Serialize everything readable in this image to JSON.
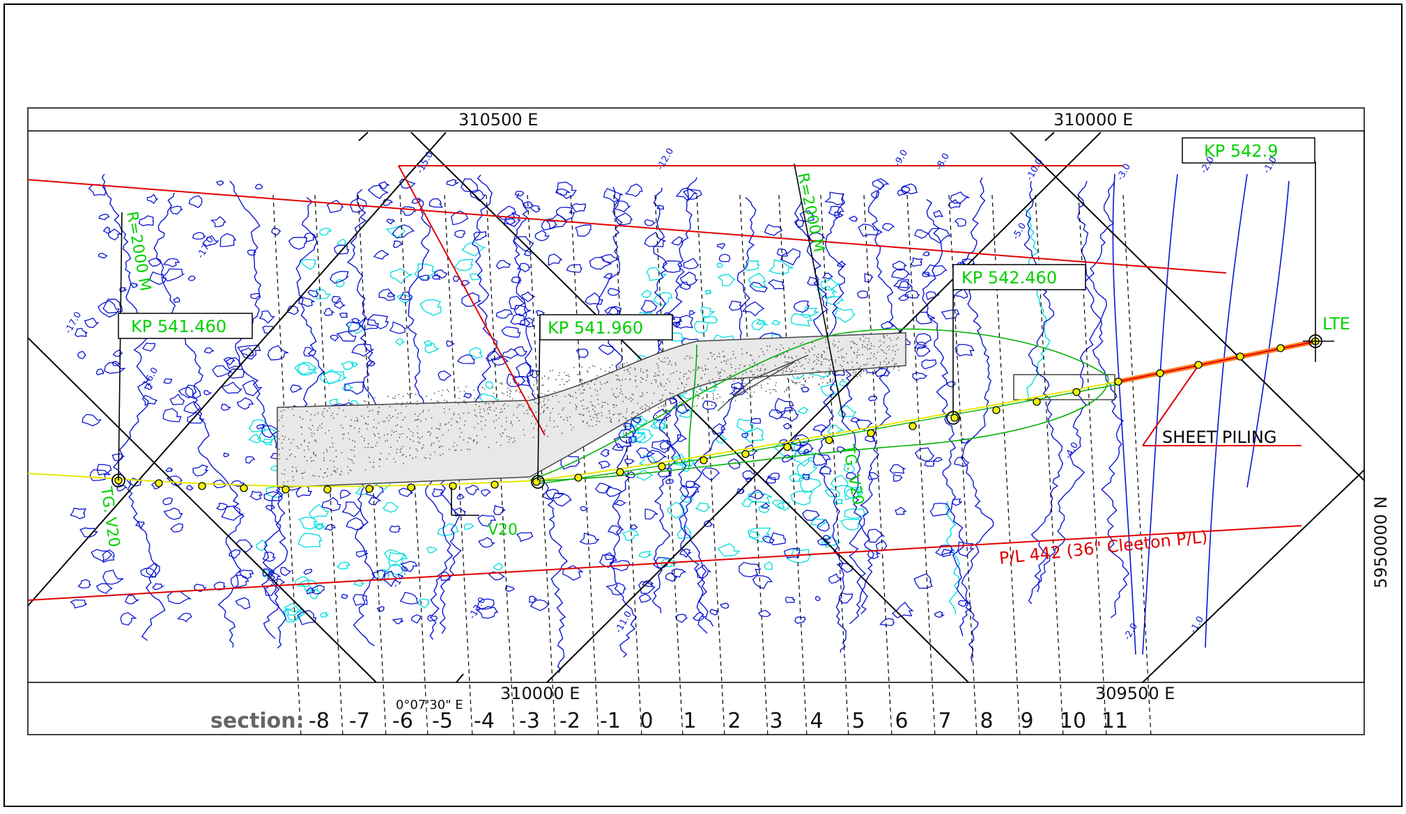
{
  "grid_labels": {
    "e_310500": "310500 E",
    "e_310000_top": "310000 E",
    "e_310000_bottom": "310000  E",
    "e_309500": "309500  E",
    "n_5950000": "5950000 N",
    "lon_label": "0°07'30\" E"
  },
  "kp_labels": [
    "KP 541.460",
    "KP 541.960",
    "KP 542.460",
    "KP 542.9"
  ],
  "annotations": {
    "lte": "LTE",
    "sheet_piling": "SHEET PILING",
    "pipeline": "P/L 442 (36\" Cleeton P/L)",
    "radius_left": "R=2000 M",
    "radius_right": "R=2000 M",
    "tg_v20": "TG. V20",
    "v20_mid": "V20",
    "tg_v20_right": "TG. V20"
  },
  "depth_labels": [
    "-17.0",
    "-17.0",
    "-16.0",
    "-15.0",
    "-14.0",
    "-13.0",
    "-12.0",
    "-11.0",
    "-10.0",
    "-9.0",
    "-8.0",
    "-5.0",
    "-4.0",
    "-3.0",
    "-2.0",
    "-1.0",
    "-2.0",
    "-1.0"
  ],
  "sections": {
    "title": "section:",
    "numbers": [
      "-8",
      "-7",
      "-6",
      "-5",
      "-4",
      "-3",
      "-2",
      "-1",
      "0",
      "1",
      "2",
      "3",
      "4",
      "5",
      "6",
      "7",
      "8",
      "9",
      "10",
      "11"
    ]
  },
  "colors": {
    "contour_deep": "#0a14d2",
    "contour_shallow": "#00dede",
    "route": "#e8e800",
    "pipeline": "#e00000",
    "text_green": "#00d000",
    "text_red": "#e00000",
    "rock": "#555555"
  }
}
